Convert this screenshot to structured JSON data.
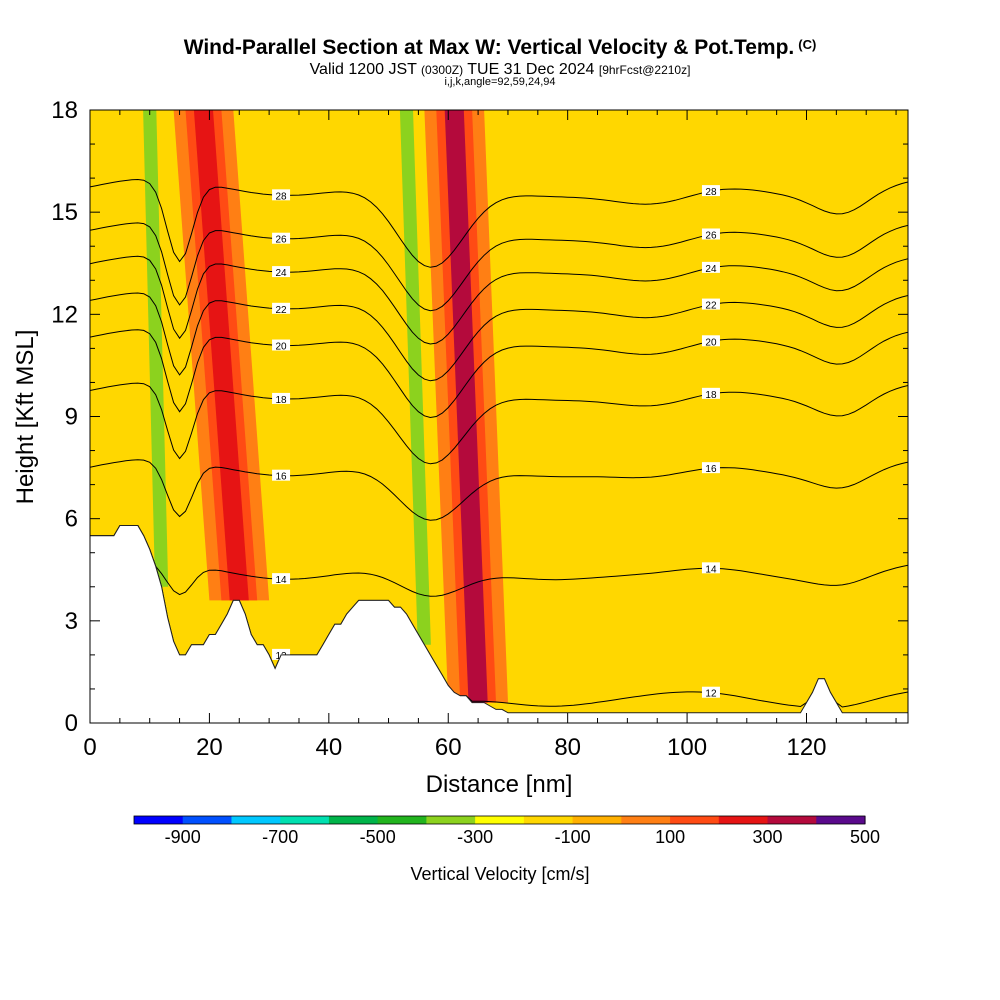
{
  "header": {
    "title": "Wind-Parallel Section at Max W: Vertical Velocity & Pot.Temp.",
    "title_tag": "(C)",
    "valid_prefix": "Valid 1200 JST",
    "valid_utc": "(0300Z)",
    "valid_date": "TUE 31 Dec 2024",
    "forecast": "[9hrFcst@2210z]",
    "indices": "i,j,k,angle=92,59,24,94"
  },
  "colorbar": {
    "label": "Vertical Velocity [cm/s]",
    "tick_labels": [
      "-900",
      "-700",
      "-500",
      "-300",
      "-100",
      "100",
      "300",
      "500"
    ],
    "colors": [
      "#0000ff",
      "#0050ff",
      "#00c8ff",
      "#00e0b0",
      "#00b44a",
      "#22b41e",
      "#8cd21e",
      "#ffff00",
      "#ffd700",
      "#ffb000",
      "#ff7f14",
      "#ff4b14",
      "#e61414",
      "#b40a3c",
      "#5a0a8c"
    ]
  },
  "chart_data": {
    "type": "heatmap",
    "title": "Wind-Parallel Section at Max W: Vertical Velocity & Pot.Temp.",
    "xlabel": "Distance [nm]",
    "ylabel": "Height [Kft MSL]",
    "xlim": [
      0,
      137
    ],
    "ylim": [
      0,
      18
    ],
    "x_ticks": [
      0,
      20,
      40,
      60,
      80,
      100,
      120
    ],
    "y_ticks": [
      0,
      3,
      6,
      9,
      12,
      15,
      18
    ],
    "colorbar_label": "Vertical Velocity [cm/s]",
    "terrain": {
      "x": [
        0,
        4,
        5,
        8,
        9,
        10,
        11,
        12,
        13,
        14,
        15,
        16,
        17,
        18,
        19,
        20,
        21,
        22,
        23,
        24,
        25,
        26,
        27,
        28,
        29,
        30,
        31,
        32,
        33,
        34,
        35,
        36,
        37,
        38,
        39,
        40,
        41,
        42,
        43,
        44,
        45,
        46,
        47,
        48,
        49,
        50,
        51,
        52,
        53,
        54,
        55,
        56,
        57,
        58,
        59,
        60,
        61,
        62,
        63,
        64,
        65,
        66,
        67,
        68,
        69,
        70,
        72,
        75,
        80,
        90,
        100,
        110,
        119,
        120,
        121,
        122,
        123,
        124,
        125,
        126,
        127,
        128,
        130,
        137
      ],
      "height_kft": [
        5.5,
        5.5,
        5.8,
        5.8,
        5.5,
        5.1,
        4.6,
        4.0,
        3.1,
        2.4,
        2.0,
        2.0,
        2.3,
        2.3,
        2.3,
        2.6,
        2.6,
        2.9,
        3.2,
        3.6,
        3.6,
        3.2,
        2.6,
        2.3,
        2.3,
        2.0,
        1.6,
        2.0,
        2.0,
        2.0,
        2.0,
        2.0,
        2.0,
        2.0,
        2.3,
        2.6,
        2.9,
        2.9,
        3.2,
        3.4,
        3.6,
        3.6,
        3.6,
        3.6,
        3.6,
        3.6,
        3.4,
        3.4,
        3.2,
        2.9,
        2.6,
        2.3,
        2.0,
        1.7,
        1.4,
        1.1,
        0.9,
        0.8,
        0.8,
        0.6,
        0.6,
        0.6,
        0.5,
        0.4,
        0.4,
        0.3,
        0.3,
        0.3,
        0.3,
        0.3,
        0.3,
        0.3,
        0.3,
        0.6,
        0.9,
        1.3,
        1.3,
        0.9,
        0.6,
        0.3,
        0.3,
        0.3,
        0.3,
        0.3
      ]
    },
    "updraft_bands": [
      {
        "x_base": 25,
        "x_top": 19,
        "w_cm_s": 300
      },
      {
        "x_base": 65,
        "x_top": 61,
        "w_cm_s": 400
      }
    ],
    "downdraft_bands": [
      {
        "x_base": 12,
        "x_top": 10,
        "w_cm_s": -300
      },
      {
        "x_base": 56,
        "x_top": 53,
        "w_cm_s": -300
      }
    ],
    "contours": [
      {
        "theta": 12,
        "base_kft": 0.6
      },
      {
        "theta": 14,
        "base_kft": 4.4
      },
      {
        "theta": 16,
        "base_kft": 7.5
      },
      {
        "theta": 18,
        "base_kft": 9.8
      },
      {
        "theta": 20,
        "base_kft": 11.4
      },
      {
        "theta": 22,
        "base_kft": 12.5
      },
      {
        "theta": 24,
        "base_kft": 13.6
      },
      {
        "theta": 26,
        "base_kft": 14.6
      },
      {
        "theta": 28,
        "base_kft": 15.9
      }
    ]
  }
}
